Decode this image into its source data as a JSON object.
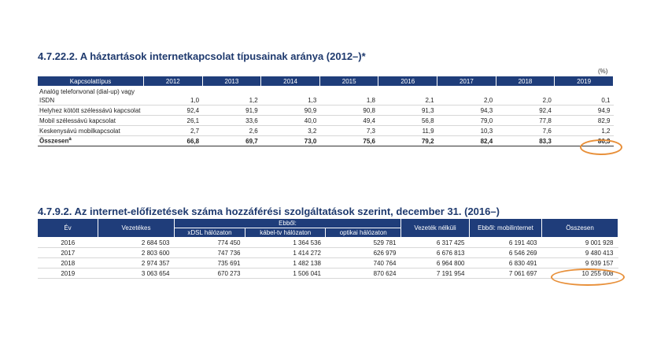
{
  "table1": {
    "title": "4.7.22.2. A háztartások internetkapcsolat típusainak aránya (2012–)*",
    "unit": "(%)",
    "header_first": "Kapcsolattípus",
    "years": [
      "2012",
      "2013",
      "2014",
      "2015",
      "2016",
      "2017",
      "2018",
      "2019"
    ],
    "rows": [
      {
        "label_line1": "Analóg telefonvonal (dial-up) vagy",
        "label_line2": "ISDN",
        "values": [
          "1,0",
          "1,2",
          "1,3",
          "1,8",
          "2,1",
          "2,0",
          "2,0",
          "0,1"
        ]
      },
      {
        "label_line1": "Helyhez kötött szélessávú kapcsolat",
        "values": [
          "92,4",
          "91,9",
          "90,9",
          "90,8",
          "91,3",
          "94,3",
          "92,4",
          "94,9"
        ]
      },
      {
        "label_line1": "Mobil szélessávú kapcsolat",
        "values": [
          "26,1",
          "33,6",
          "40,0",
          "49,4",
          "56,8",
          "79,0",
          "77,8",
          "82,9"
        ]
      },
      {
        "label_line1": "Keskenysávú mobilkapcsolat",
        "values": [
          "2,7",
          "2,6",
          "3,2",
          "7,3",
          "11,9",
          "10,3",
          "7,6",
          "1,2"
        ]
      }
    ],
    "total": {
      "label": "Összesen",
      "label_sup": "a",
      "values": [
        "66,8",
        "69,7",
        "73,0",
        "75,6",
        "79,2",
        "82,4",
        "83,3",
        "86,3"
      ]
    }
  },
  "table2": {
    "title": "4.7.9.2. Az internet-előfizetések száma hozzáférési szolgáltatások szerint, december 31. (2016–)",
    "headers": {
      "ev": "Év",
      "vezetekes": "Vezetékes",
      "ebbol": "Ebből:",
      "xdsl": "xDSL hálózaton",
      "kabel": "kábel-tv hálózaton",
      "optikai": "optikai hálózaton",
      "vezeteknelkuli": "Vezeték nélküli",
      "mobil": "Ebből: mobilinternet",
      "osszesen": "Összesen"
    },
    "rows": [
      {
        "ev": "2016",
        "vezetekes": "2 684 503",
        "xdsl": "774 450",
        "kabel": "1 364 536",
        "optikai": "529 781",
        "vezeteknelkuli": "6 317 425",
        "mobil": "6 191 403",
        "osszesen": "9 001 928"
      },
      {
        "ev": "2017",
        "vezetekes": "2 803 600",
        "xdsl": "747 736",
        "kabel": "1 414 272",
        "optikai": "626 979",
        "vezeteknelkuli": "6 676 813",
        "mobil": "6 546 269",
        "osszesen": "9 480 413"
      },
      {
        "ev": "2018",
        "vezetekes": "2 974 357",
        "xdsl": "735 691",
        "kabel": "1 482 138",
        "optikai": "740 764",
        "vezeteknelkuli": "6 964 800",
        "mobil": "6 830 491",
        "osszesen": "9 939 157"
      },
      {
        "ev": "2019",
        "vezetekes": "3 063 654",
        "xdsl": "670 273",
        "kabel": "1 506 041",
        "optikai": "870 624",
        "vezeteknelkuli": "7 191 954",
        "mobil": "7 061 697",
        "osszesen": "10 255 608"
      }
    ]
  },
  "highlight_color": "#e8903a"
}
